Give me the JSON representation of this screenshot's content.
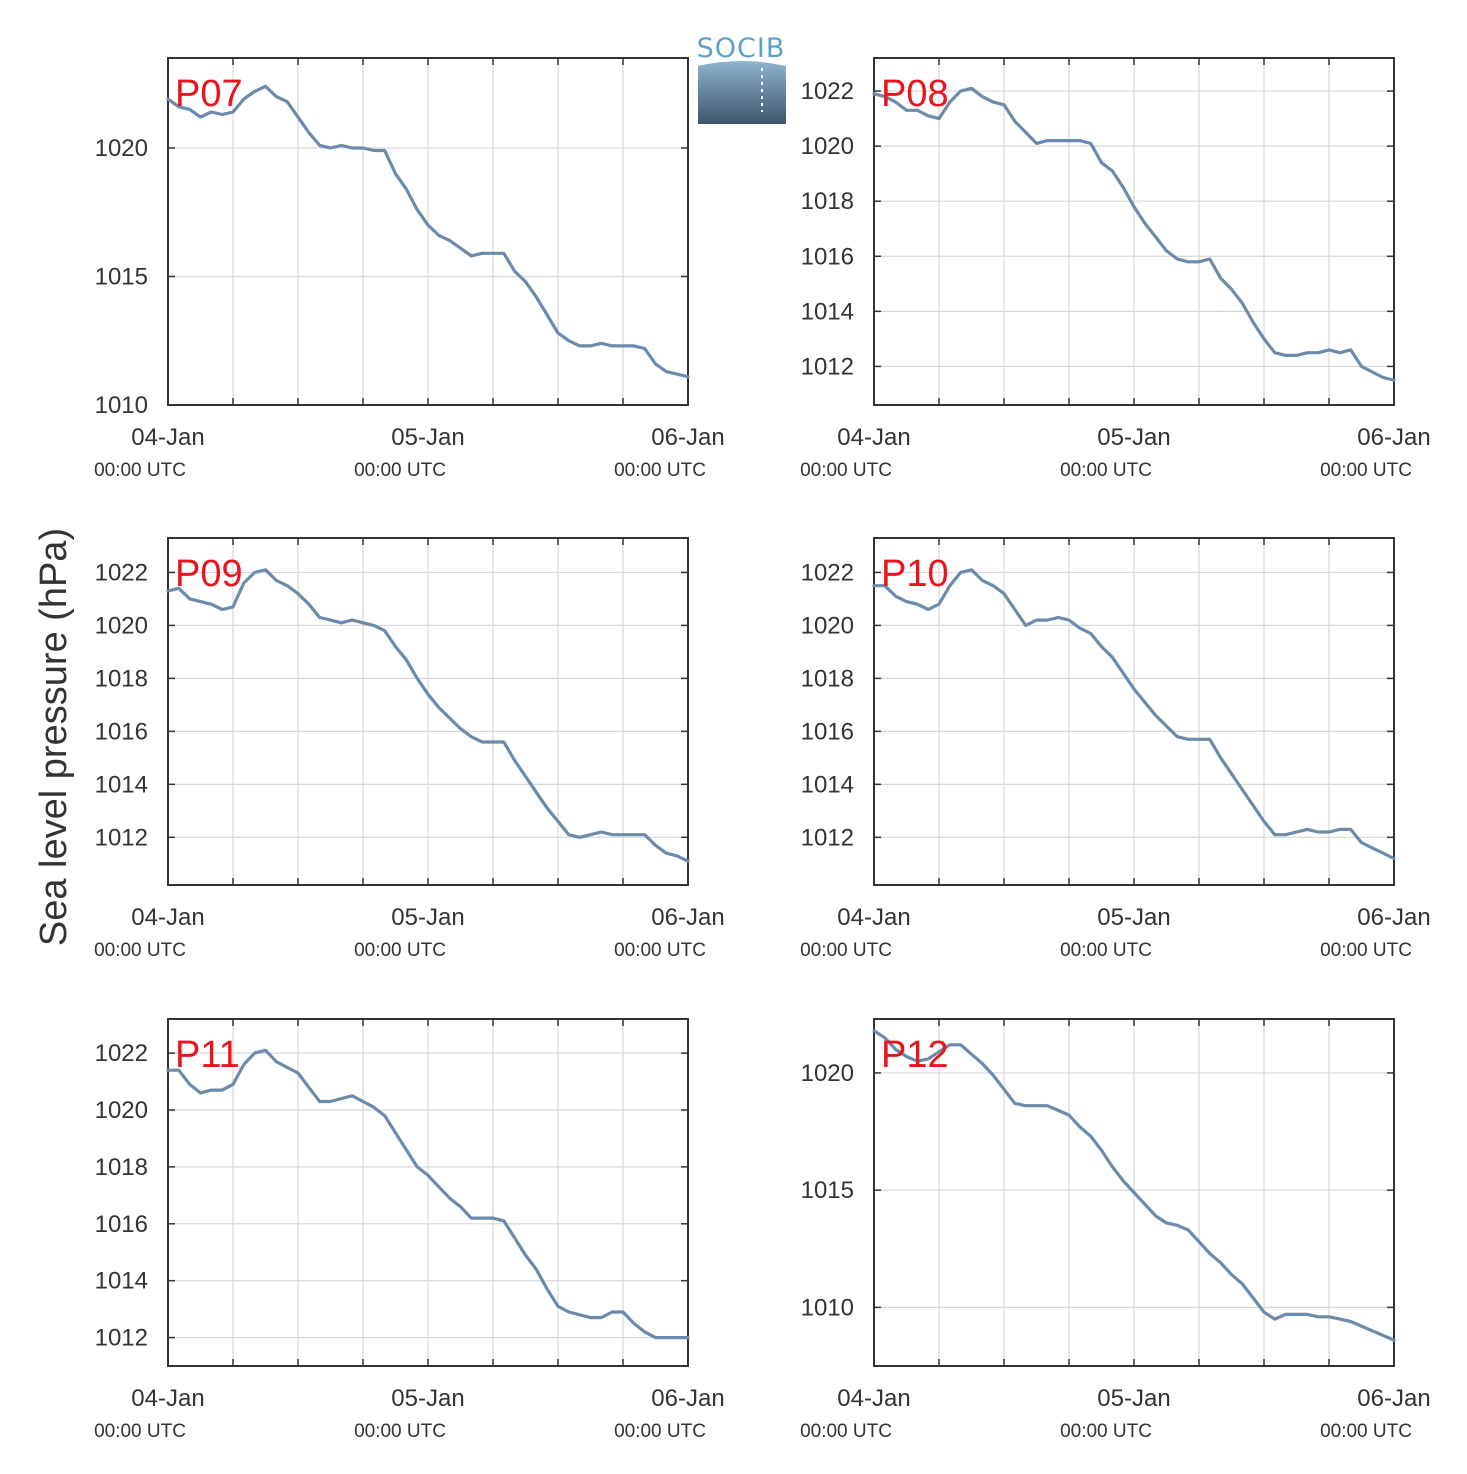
{
  "logo": {
    "text": "SOCIB"
  },
  "ylabel": "Sea level pressure (hPa)",
  "colors": {
    "line": "#6c8aab",
    "panel_label": "#e8141e",
    "grid": "#d8d8d8",
    "axis": "#333333"
  },
  "chart_data": [
    {
      "type": "line",
      "title": "P07",
      "x_ticks": [
        {
          "label": "04-Jan",
          "sub": "00:00 UTC"
        },
        {
          "label": "05-Jan",
          "sub": "00:00 UTC"
        },
        {
          "label": "06-Jan",
          "sub": "00:00 UTC"
        }
      ],
      "xlim": [
        0,
        48
      ],
      "ylim": [
        1010,
        1023.5
      ],
      "y_ticks": [
        1010,
        1015,
        1020
      ],
      "series": [
        {
          "x": [
            0,
            1,
            2,
            3,
            4,
            5,
            6,
            7,
            8,
            9,
            10,
            11,
            12,
            13,
            14,
            15,
            16,
            17,
            18,
            19,
            20,
            21,
            22,
            23,
            24,
            25,
            26,
            27,
            28,
            29,
            30,
            31,
            32,
            33,
            34,
            35,
            36,
            37,
            38,
            39,
            40,
            41,
            42,
            43,
            44,
            45,
            46,
            47,
            48
          ],
          "values": [
            1021.9,
            1021.6,
            1021.5,
            1021.2,
            1021.4,
            1021.3,
            1021.4,
            1021.9,
            1022.2,
            1022.4,
            1022.0,
            1021.8,
            1021.2,
            1020.6,
            1020.1,
            1020.0,
            1020.1,
            1020.0,
            1020.0,
            1019.9,
            1019.9,
            1019.0,
            1018.4,
            1017.6,
            1017.0,
            1016.6,
            1016.4,
            1016.1,
            1015.8,
            1015.9,
            1015.9,
            1015.9,
            1015.2,
            1014.8,
            1014.2,
            1013.5,
            1012.8,
            1012.5,
            1012.3,
            1012.3,
            1012.4,
            1012.3,
            1012.3,
            1012.3,
            1012.2,
            1011.6,
            1011.3,
            1011.2,
            1011.1
          ]
        }
      ]
    },
    {
      "type": "line",
      "title": "P08",
      "x_ticks": [
        {
          "label": "04-Jan",
          "sub": "00:00 UTC"
        },
        {
          "label": "05-Jan",
          "sub": "00:00 UTC"
        },
        {
          "label": "06-Jan",
          "sub": "00:00 UTC"
        }
      ],
      "xlim": [
        0,
        48
      ],
      "ylim": [
        1010.6,
        1023.2
      ],
      "y_ticks": [
        1012,
        1014,
        1016,
        1018,
        1020,
        1022
      ],
      "series": [
        {
          "x": [
            0,
            1,
            2,
            3,
            4,
            5,
            6,
            7,
            8,
            9,
            10,
            11,
            12,
            13,
            14,
            15,
            16,
            17,
            18,
            19,
            20,
            21,
            22,
            23,
            24,
            25,
            26,
            27,
            28,
            29,
            30,
            31,
            32,
            33,
            34,
            35,
            36,
            37,
            38,
            39,
            40,
            41,
            42,
            43,
            44,
            45,
            46,
            47,
            48
          ],
          "values": [
            1021.9,
            1021.8,
            1021.6,
            1021.3,
            1021.3,
            1021.1,
            1021.0,
            1021.6,
            1022.0,
            1022.1,
            1021.8,
            1021.6,
            1021.5,
            1020.9,
            1020.5,
            1020.1,
            1020.2,
            1020.2,
            1020.2,
            1020.2,
            1020.1,
            1019.4,
            1019.1,
            1018.5,
            1017.8,
            1017.2,
            1016.7,
            1016.2,
            1015.9,
            1015.8,
            1015.8,
            1015.9,
            1015.2,
            1014.8,
            1014.3,
            1013.6,
            1013.0,
            1012.5,
            1012.4,
            1012.4,
            1012.5,
            1012.5,
            1012.6,
            1012.5,
            1012.6,
            1012.0,
            1011.8,
            1011.6,
            1011.5
          ]
        }
      ]
    },
    {
      "type": "line",
      "title": "P09",
      "x_ticks": [
        {
          "label": "04-Jan",
          "sub": "00:00 UTC"
        },
        {
          "label": "05-Jan",
          "sub": "00:00 UTC"
        },
        {
          "label": "06-Jan",
          "sub": "00:00 UTC"
        }
      ],
      "xlim": [
        0,
        48
      ],
      "ylim": [
        1010.2,
        1023.3
      ],
      "y_ticks": [
        1012,
        1014,
        1016,
        1018,
        1020,
        1022
      ],
      "series": [
        {
          "x": [
            0,
            1,
            2,
            3,
            4,
            5,
            6,
            7,
            8,
            9,
            10,
            11,
            12,
            13,
            14,
            15,
            16,
            17,
            18,
            19,
            20,
            21,
            22,
            23,
            24,
            25,
            26,
            27,
            28,
            29,
            30,
            31,
            32,
            33,
            34,
            35,
            36,
            37,
            38,
            39,
            40,
            41,
            42,
            43,
            44,
            45,
            46,
            47,
            48
          ],
          "values": [
            1021.3,
            1021.4,
            1021.0,
            1020.9,
            1020.8,
            1020.6,
            1020.7,
            1021.6,
            1022.0,
            1022.1,
            1021.7,
            1021.5,
            1021.2,
            1020.8,
            1020.3,
            1020.2,
            1020.1,
            1020.2,
            1020.1,
            1020.0,
            1019.8,
            1019.2,
            1018.7,
            1018.0,
            1017.4,
            1016.9,
            1016.5,
            1016.1,
            1015.8,
            1015.6,
            1015.6,
            1015.6,
            1014.9,
            1014.3,
            1013.7,
            1013.1,
            1012.6,
            1012.1,
            1012.0,
            1012.1,
            1012.2,
            1012.1,
            1012.1,
            1012.1,
            1012.1,
            1011.7,
            1011.4,
            1011.3,
            1011.1
          ]
        }
      ]
    },
    {
      "type": "line",
      "title": "P10",
      "x_ticks": [
        {
          "label": "04-Jan",
          "sub": "00:00 UTC"
        },
        {
          "label": "05-Jan",
          "sub": "00:00 UTC"
        },
        {
          "label": "06-Jan",
          "sub": "00:00 UTC"
        }
      ],
      "xlim": [
        0,
        48
      ],
      "ylim": [
        1010.2,
        1023.3
      ],
      "y_ticks": [
        1012,
        1014,
        1016,
        1018,
        1020,
        1022
      ],
      "series": [
        {
          "x": [
            0,
            1,
            2,
            3,
            4,
            5,
            6,
            7,
            8,
            9,
            10,
            11,
            12,
            13,
            14,
            15,
            16,
            17,
            18,
            19,
            20,
            21,
            22,
            23,
            24,
            25,
            26,
            27,
            28,
            29,
            30,
            31,
            32,
            33,
            34,
            35,
            36,
            37,
            38,
            39,
            40,
            41,
            42,
            43,
            44,
            45,
            46,
            47,
            48
          ],
          "values": [
            1021.5,
            1021.5,
            1021.1,
            1020.9,
            1020.8,
            1020.6,
            1020.8,
            1021.5,
            1022.0,
            1022.1,
            1021.7,
            1021.5,
            1021.2,
            1020.6,
            1020.0,
            1020.2,
            1020.2,
            1020.3,
            1020.2,
            1019.9,
            1019.7,
            1019.2,
            1018.8,
            1018.2,
            1017.6,
            1017.1,
            1016.6,
            1016.2,
            1015.8,
            1015.7,
            1015.7,
            1015.7,
            1015.0,
            1014.4,
            1013.8,
            1013.2,
            1012.6,
            1012.1,
            1012.1,
            1012.2,
            1012.3,
            1012.2,
            1012.2,
            1012.3,
            1012.3,
            1011.8,
            1011.6,
            1011.4,
            1011.2
          ]
        }
      ]
    },
    {
      "type": "line",
      "title": "P11",
      "x_ticks": [
        {
          "label": "04-Jan",
          "sub": "00:00 UTC"
        },
        {
          "label": "05-Jan",
          "sub": "00:00 UTC"
        },
        {
          "label": "06-Jan",
          "sub": "00:00 UTC"
        }
      ],
      "xlim": [
        0,
        48
      ],
      "ylim": [
        1011,
        1023.2
      ],
      "y_ticks": [
        1012,
        1014,
        1016,
        1018,
        1020,
        1022
      ],
      "series": [
        {
          "x": [
            0,
            1,
            2,
            3,
            4,
            5,
            6,
            7,
            8,
            9,
            10,
            11,
            12,
            13,
            14,
            15,
            16,
            17,
            18,
            19,
            20,
            21,
            22,
            23,
            24,
            25,
            26,
            27,
            28,
            29,
            30,
            31,
            32,
            33,
            34,
            35,
            36,
            37,
            38,
            39,
            40,
            41,
            42,
            43,
            44,
            45,
            46,
            47,
            48
          ],
          "values": [
            1021.4,
            1021.4,
            1020.9,
            1020.6,
            1020.7,
            1020.7,
            1020.9,
            1021.6,
            1022.0,
            1022.1,
            1021.7,
            1021.5,
            1021.3,
            1020.8,
            1020.3,
            1020.3,
            1020.4,
            1020.5,
            1020.3,
            1020.1,
            1019.8,
            1019.2,
            1018.6,
            1018.0,
            1017.7,
            1017.3,
            1016.9,
            1016.6,
            1016.2,
            1016.2,
            1016.2,
            1016.1,
            1015.5,
            1014.9,
            1014.4,
            1013.7,
            1013.1,
            1012.9,
            1012.8,
            1012.7,
            1012.7,
            1012.9,
            1012.9,
            1012.5,
            1012.2,
            1012.0,
            1012.0,
            1012.0,
            1012.0
          ]
        }
      ]
    },
    {
      "type": "line",
      "title": "P12",
      "x_ticks": [
        {
          "label": "04-Jan",
          "sub": "00:00 UTC"
        },
        {
          "label": "05-Jan",
          "sub": "00:00 UTC"
        },
        {
          "label": "06-Jan",
          "sub": "00:00 UTC"
        }
      ],
      "xlim": [
        0,
        48
      ],
      "ylim": [
        1007.5,
        1022.3
      ],
      "y_ticks": [
        1010,
        1015,
        1020
      ],
      "series": [
        {
          "x": [
            0,
            1,
            2,
            3,
            4,
            5,
            6,
            7,
            8,
            9,
            10,
            11,
            12,
            13,
            14,
            15,
            16,
            17,
            18,
            19,
            20,
            21,
            22,
            23,
            24,
            25,
            26,
            27,
            28,
            29,
            30,
            31,
            32,
            33,
            34,
            35,
            36,
            37,
            38,
            39,
            40,
            41,
            42,
            43,
            44,
            45,
            46,
            47,
            48
          ],
          "values": [
            1021.8,
            1021.5,
            1021.0,
            1020.7,
            1020.5,
            1020.6,
            1020.9,
            1021.2,
            1021.2,
            1020.8,
            1020.4,
            1019.9,
            1019.3,
            1018.7,
            1018.6,
            1018.6,
            1018.6,
            1018.4,
            1018.2,
            1017.7,
            1017.3,
            1016.7,
            1016.0,
            1015.4,
            1014.9,
            1014.4,
            1013.9,
            1013.6,
            1013.5,
            1013.3,
            1012.8,
            1012.3,
            1011.9,
            1011.4,
            1011.0,
            1010.4,
            1009.8,
            1009.5,
            1009.7,
            1009.7,
            1009.7,
            1009.6,
            1009.6,
            1009.5,
            1009.4,
            1009.2,
            1009.0,
            1008.8,
            1008.6
          ]
        }
      ]
    }
  ]
}
